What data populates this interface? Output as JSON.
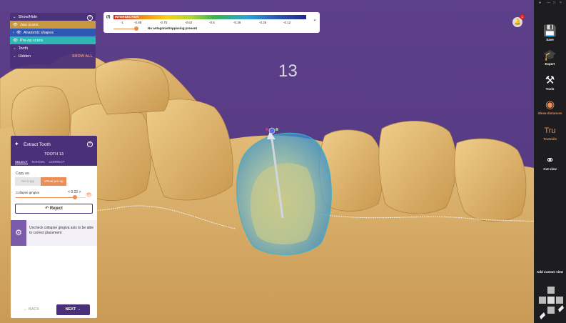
{
  "viewport": {
    "tooth_number": "13"
  },
  "tree_panel": {
    "rows": [
      {
        "label": "Show/Hide",
        "style": "header"
      },
      {
        "label": "Jaw scans",
        "style": "orange"
      },
      {
        "label": "Anatomic shapes",
        "style": "blue"
      },
      {
        "label": "Pre-op scans",
        "style": "teal"
      },
      {
        "label": "Tooth",
        "style": "header"
      },
      {
        "label": "Hidden",
        "style": "header"
      }
    ],
    "help_icon": "?",
    "show_all": "SHOW ALL"
  },
  "intersection_scale": {
    "label": "INTERSECTION",
    "prefix": "(f)",
    "ticks": [
      "-1",
      "-0.88",
      "-0.75",
      "-0.62",
      "-0.5",
      "-0.38",
      "-0.25",
      "-0.12"
    ],
    "message": "No antagonist/opposing present",
    "slider_fraction": 0.12,
    "chevron": "⌄",
    "colors": [
      "#e0221d",
      "#f08a1c",
      "#f7d11d",
      "#3cb44b",
      "#2ea2d8",
      "#1f2a8a"
    ]
  },
  "extract_panel": {
    "title": "Extract Tooth",
    "subtitle": "TOOTH 13",
    "tabs": [
      "SELECT",
      "MARGIN",
      "CORRECT"
    ],
    "active_tab": "SELECT",
    "copy_as_label": "Copy as:",
    "copy_no": "No Copy",
    "copy_virtual": "Virtual pre-op",
    "collapse_label": "Collapse gingiva",
    "collapse_minus": "<",
    "collapse_value": "0.22",
    "collapse_plus": ">",
    "collapse_fraction": 0.85,
    "reject_label": "Reject",
    "info_text": "Uncheck collapse gingiva axis to be able to correct placement",
    "back_label": "BACK",
    "next_label": "NEXT",
    "help_icon": "?"
  },
  "notifications": {
    "badge": "1"
  },
  "toolbar": {
    "window_controls": [
      "—",
      "□",
      "×"
    ],
    "items": [
      {
        "label": "Save",
        "icon": "save-icon",
        "color": "white"
      },
      {
        "label": "Expert",
        "icon": "graduation-cap-icon",
        "color": "white"
      },
      {
        "label": "Tools",
        "icon": "tools-icon",
        "color": "white"
      },
      {
        "label": "Show distances",
        "icon": "tooth-distance-icon",
        "color": "orange"
      },
      {
        "label": "TruSmile",
        "icon": "trusmile-icon",
        "color": "orange"
      },
      {
        "label": "Cut view",
        "icon": "cut-view-icon",
        "color": "white"
      }
    ],
    "custom_view_label": "Add custom view"
  },
  "colors": {
    "background_purple": "#5a3c86",
    "panel_purple": "#4a3078",
    "accent_orange": "#ec8d55",
    "tooth": "#dcb26e",
    "selection_teal": "#3fb3c6"
  }
}
